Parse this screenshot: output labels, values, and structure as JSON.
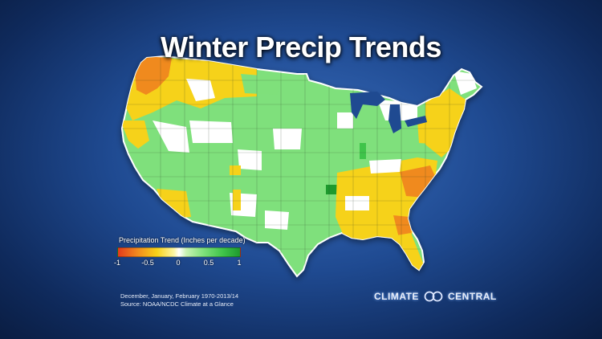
{
  "title": "Winter Precip Trends",
  "legend": {
    "title": "Precipitation Trend (Inches per decade)",
    "ticks": [
      "-1",
      "-0.5",
      "0",
      "0.5",
      "1"
    ],
    "tick_values": [
      -1,
      -0.5,
      0,
      0.5,
      1
    ],
    "range": [
      -1,
      1
    ],
    "colors": {
      "strong_decrease": "#e23a1a",
      "decrease": "#f08a1e",
      "slight_decrease": "#f6d21a",
      "neutral": "#ffffff",
      "slight_increase": "#7fe07b",
      "increase": "#3fc44a",
      "strong_increase": "#1e9a2e"
    }
  },
  "footnote": {
    "line1": "December, January, February 1970-2013/14",
    "line2": "Source: NOAA/NCDC Climate at a Glance"
  },
  "logo": {
    "left_word": "CLIMATE",
    "right_word": "CENTRAL",
    "icon": "climate-central-rings-icon"
  },
  "map": {
    "region": "Contiguous United States",
    "base_color": "#7fe07b",
    "border_color": "#ffffff"
  }
}
